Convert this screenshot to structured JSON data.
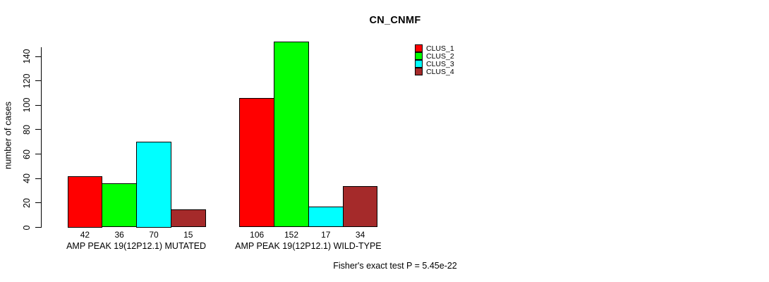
{
  "chart_data": {
    "type": "bar",
    "title": "CN_CNMF",
    "xlabel": "",
    "ylabel": "number of cases",
    "categories": [
      "AMP PEAK 19(12P12.1) MUTATED",
      "AMP PEAK 19(12P12.1) WILD-TYPE"
    ],
    "series": [
      {
        "name": "CLUS_1",
        "color": "#ff0000",
        "values": [
          42,
          106
        ]
      },
      {
        "name": "CLUS_2",
        "color": "#00ff00",
        "values": [
          36,
          152
        ]
      },
      {
        "name": "CLUS_3",
        "color": "#00ffff",
        "values": [
          70,
          17
        ]
      },
      {
        "name": "CLUS_4",
        "color": "#a52a2a",
        "values": [
          15,
          34
        ]
      }
    ],
    "yticks": [
      0,
      20,
      40,
      60,
      80,
      100,
      120,
      140
    ],
    "ylim": [
      0,
      152
    ],
    "grid": false,
    "bar_value_labels": true,
    "legend_position": "top-right",
    "annotation": "Fisher's exact test P = 5.45e-22"
  }
}
